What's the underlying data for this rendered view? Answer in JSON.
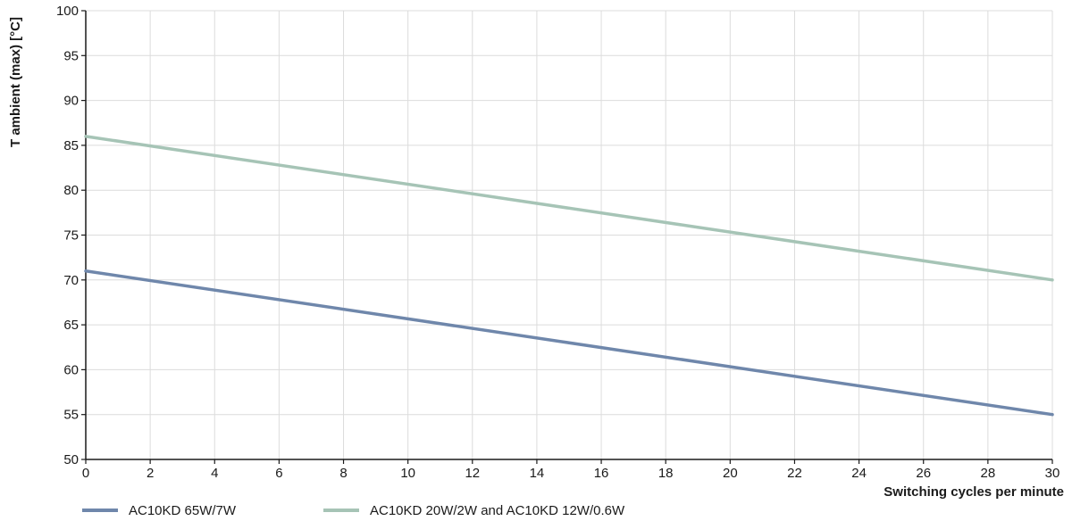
{
  "chart_data": {
    "type": "line",
    "title": "",
    "xlabel": "Switching cycles per minute",
    "ylabel": "T ambient (max) [°C]",
    "xlim": [
      0,
      30
    ],
    "ylim": [
      50,
      100
    ],
    "xticks": [
      0,
      2,
      4,
      6,
      8,
      10,
      12,
      14,
      16,
      18,
      20,
      22,
      24,
      26,
      28,
      30
    ],
    "yticks": [
      50,
      55,
      60,
      65,
      70,
      75,
      80,
      85,
      90,
      95,
      100
    ],
    "grid": true,
    "legend_position": "bottom-left",
    "series": [
      {
        "name": "AC10KD 65W/7W",
        "color": "#6f87ab",
        "x": [
          0,
          30
        ],
        "y": [
          71,
          55
        ]
      },
      {
        "name": "AC10KD 20W/2W and AC10KD 12W/0.6W",
        "color": "#a6c4b6",
        "x": [
          0,
          30
        ],
        "y": [
          86,
          70
        ]
      }
    ]
  }
}
